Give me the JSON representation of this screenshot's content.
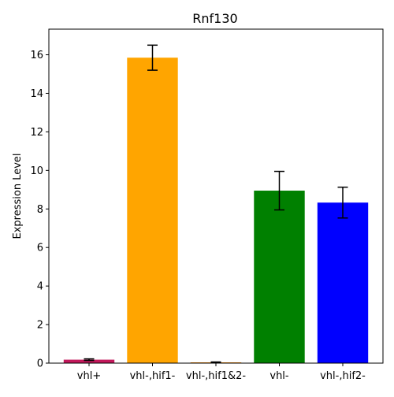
{
  "chart_data": {
    "type": "bar",
    "title": "Rnf130",
    "xlabel": "",
    "ylabel": "Expression Level",
    "categories": [
      "vhl+",
      "vhl-,hif1-",
      "vhl-,hif1&2-",
      "vhl-",
      "vhl-,hif2-"
    ],
    "values": [
      0.18,
      15.85,
      0.04,
      8.95,
      8.33
    ],
    "errors": [
      0.04,
      0.65,
      0.02,
      1.0,
      0.8
    ],
    "colors": [
      "#c2185b",
      "#ffa500",
      "#ff8c00",
      "#008000",
      "#0000ff"
    ],
    "ylim": [
      0,
      17.33
    ],
    "yticks": [
      0,
      2,
      4,
      6,
      8,
      10,
      12,
      14,
      16
    ],
    "grid": false,
    "legend": null
  }
}
